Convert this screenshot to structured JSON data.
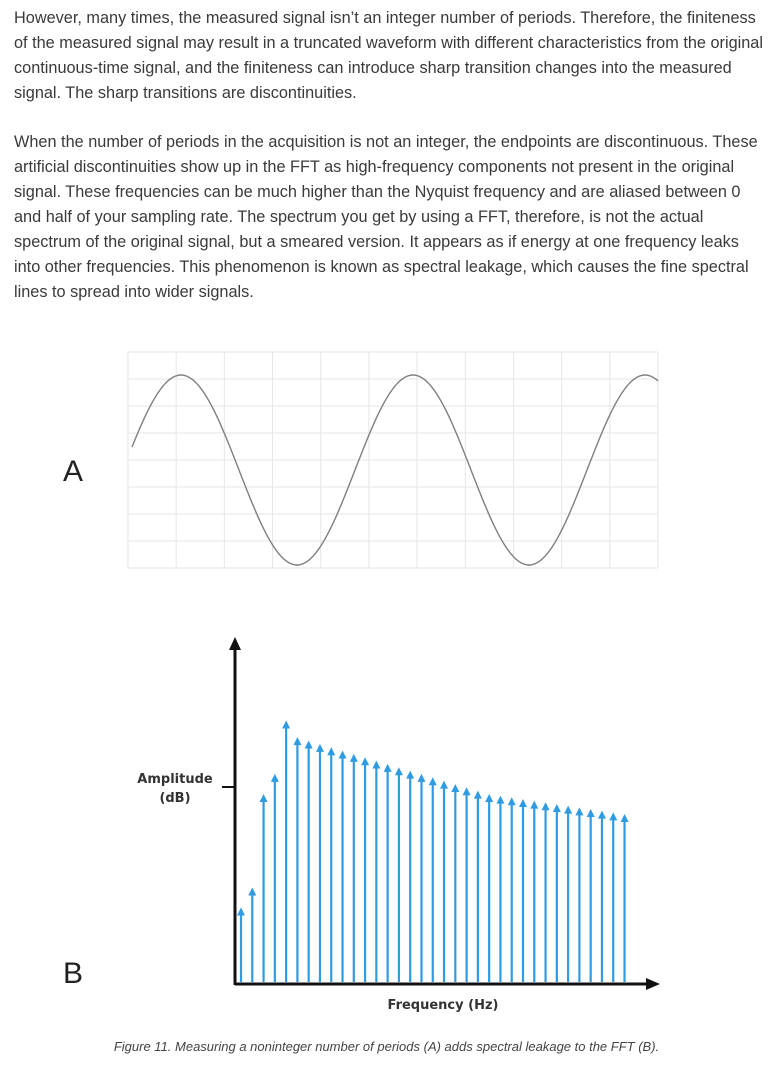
{
  "paragraphs": [
    "However, many times, the measured signal isn’t an integer number of periods. Therefore, the finiteness of the measured signal may result in a truncated waveform with different characteristics from the original continuous-time signal, and the finiteness can introduce sharp transition changes into the measured signal. The sharp transitions are discontinuities.",
    "When the number of periods in the acquisition is not an integer, the endpoints are discontinuous. These artificial discontinuities show up in the FFT as high-frequency components not present in the original signal. These frequencies can be much higher than the Nyquist frequency and are aliased between 0 and half of your sampling rate. The spectrum you get by using a FFT, therefore, is not the actual spectrum of the original signal, but a smeared version. It appears as if energy at one frequency leaks into other frequencies. This phenomenon is known as spectral leakage, which causes the fine spectral lines to spread into wider signals."
  ],
  "figure": {
    "panel_a_label": "A",
    "panel_b_label": "B",
    "ylabel_line1": "Amplitude",
    "ylabel_line2": "(dB)",
    "xlabel": "Frequency (Hz)",
    "caption": "Figure 11. Measuring a noninteger number of periods (A) adds spectral leakage to the FFT (B).",
    "wave_color": "#7f7f7f",
    "spectrum_color": "#2f9be2",
    "axis_color": "#111111",
    "grid_color": "#e6e6e6"
  },
  "chart_data": [
    {
      "type": "line",
      "description_panel": "A",
      "periods": 2.3,
      "amplitude": 1.0
    },
    {
      "type": "bar",
      "description_panel": "B",
      "values": [
        0.22,
        0.28,
        0.56,
        0.62,
        0.78,
        0.73,
        0.72,
        0.71,
        0.7,
        0.69,
        0.68,
        0.67,
        0.66,
        0.65,
        0.64,
        0.63,
        0.62,
        0.61,
        0.6,
        0.59,
        0.58,
        0.57,
        0.56,
        0.555,
        0.55,
        0.545,
        0.54,
        0.535,
        0.53,
        0.525,
        0.52,
        0.515,
        0.51,
        0.505,
        0.5
      ]
    }
  ]
}
